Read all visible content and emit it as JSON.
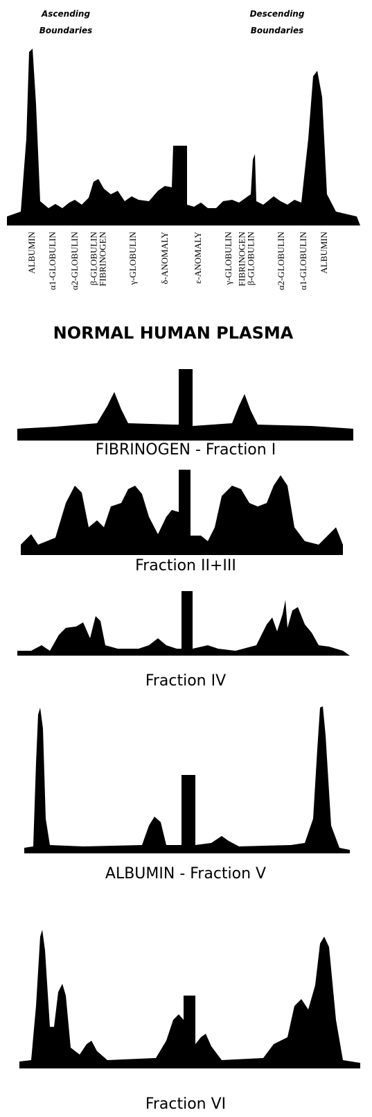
{
  "headers": [
    {
      "lines": [
        "Ascending",
        "Boundaries"
      ]
    },
    {
      "lines": [
        "Descending",
        "Boundaries"
      ]
    }
  ],
  "components": [
    {
      "lines": [
        "ALBUMIN"
      ]
    },
    {
      "lines": [
        "α1-GLOBULIN"
      ]
    },
    {
      "lines": [
        "α2-GLOBULIN"
      ]
    },
    {
      "lines": [
        "β-GLOBULIN",
        "FIBRINOGEN"
      ]
    },
    {
      "lines": [
        "γ-GLOBULIN"
      ]
    },
    {
      "lines": [
        "δ-ANOMALY"
      ]
    },
    {
      "lines": [
        "ε-ANOMALY"
      ]
    },
    {
      "lines": [
        "γ-GLOBULIN"
      ]
    },
    {
      "lines": [
        "FIBRINOGEN",
        "β-GLOBULIN"
      ]
    },
    {
      "lines": [
        "α2-GLOBULIN"
      ]
    },
    {
      "lines": [
        "α1-GLOBULIN"
      ]
    },
    {
      "lines": [
        "ALBUMIN"
      ]
    }
  ],
  "title": "NORMAL  HUMAN  PLASMA",
  "captions": [
    "FIBRINOGEN - Fraction I",
    "Fraction II+III",
    "Fraction IV",
    "ALBUMIN - Fraction V",
    "Fraction VI"
  ]
}
